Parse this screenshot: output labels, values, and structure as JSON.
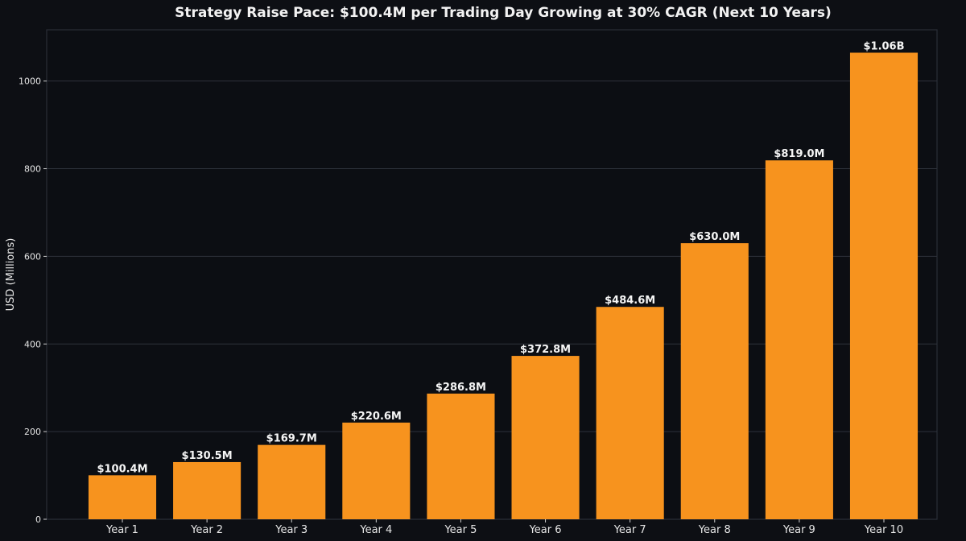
{
  "chart_data": {
    "type": "bar",
    "title": "Strategy Raise Pace: $100.4M per Trading Day Growing at 30% CAGR (Next 10 Years)",
    "xlabel": "",
    "ylabel": "USD (Millions)",
    "categories": [
      "Year 1",
      "Year 2",
      "Year 3",
      "Year 4",
      "Year 5",
      "Year 6",
      "Year 7",
      "Year 8",
      "Year 9",
      "Year 10"
    ],
    "values": [
      100.4,
      130.5,
      169.7,
      220.6,
      286.8,
      372.8,
      484.6,
      630.0,
      819.0,
      1064.7
    ],
    "data_labels": [
      "$100.4M",
      "$130.5M",
      "$169.7M",
      "$220.6M",
      "$286.8M",
      "$372.8M",
      "$484.6M",
      "$630.0M",
      "$819.0M",
      "$1.06B"
    ],
    "ylim": [
      0,
      1117
    ],
    "yticks": [
      0,
      200,
      400,
      600,
      800,
      1000
    ],
    "grid": true,
    "legend": "none",
    "colors": {
      "bar": "#f7931e",
      "background": "#0d0f14",
      "grid": "#2e323b",
      "text": "#e6e6e6"
    }
  }
}
